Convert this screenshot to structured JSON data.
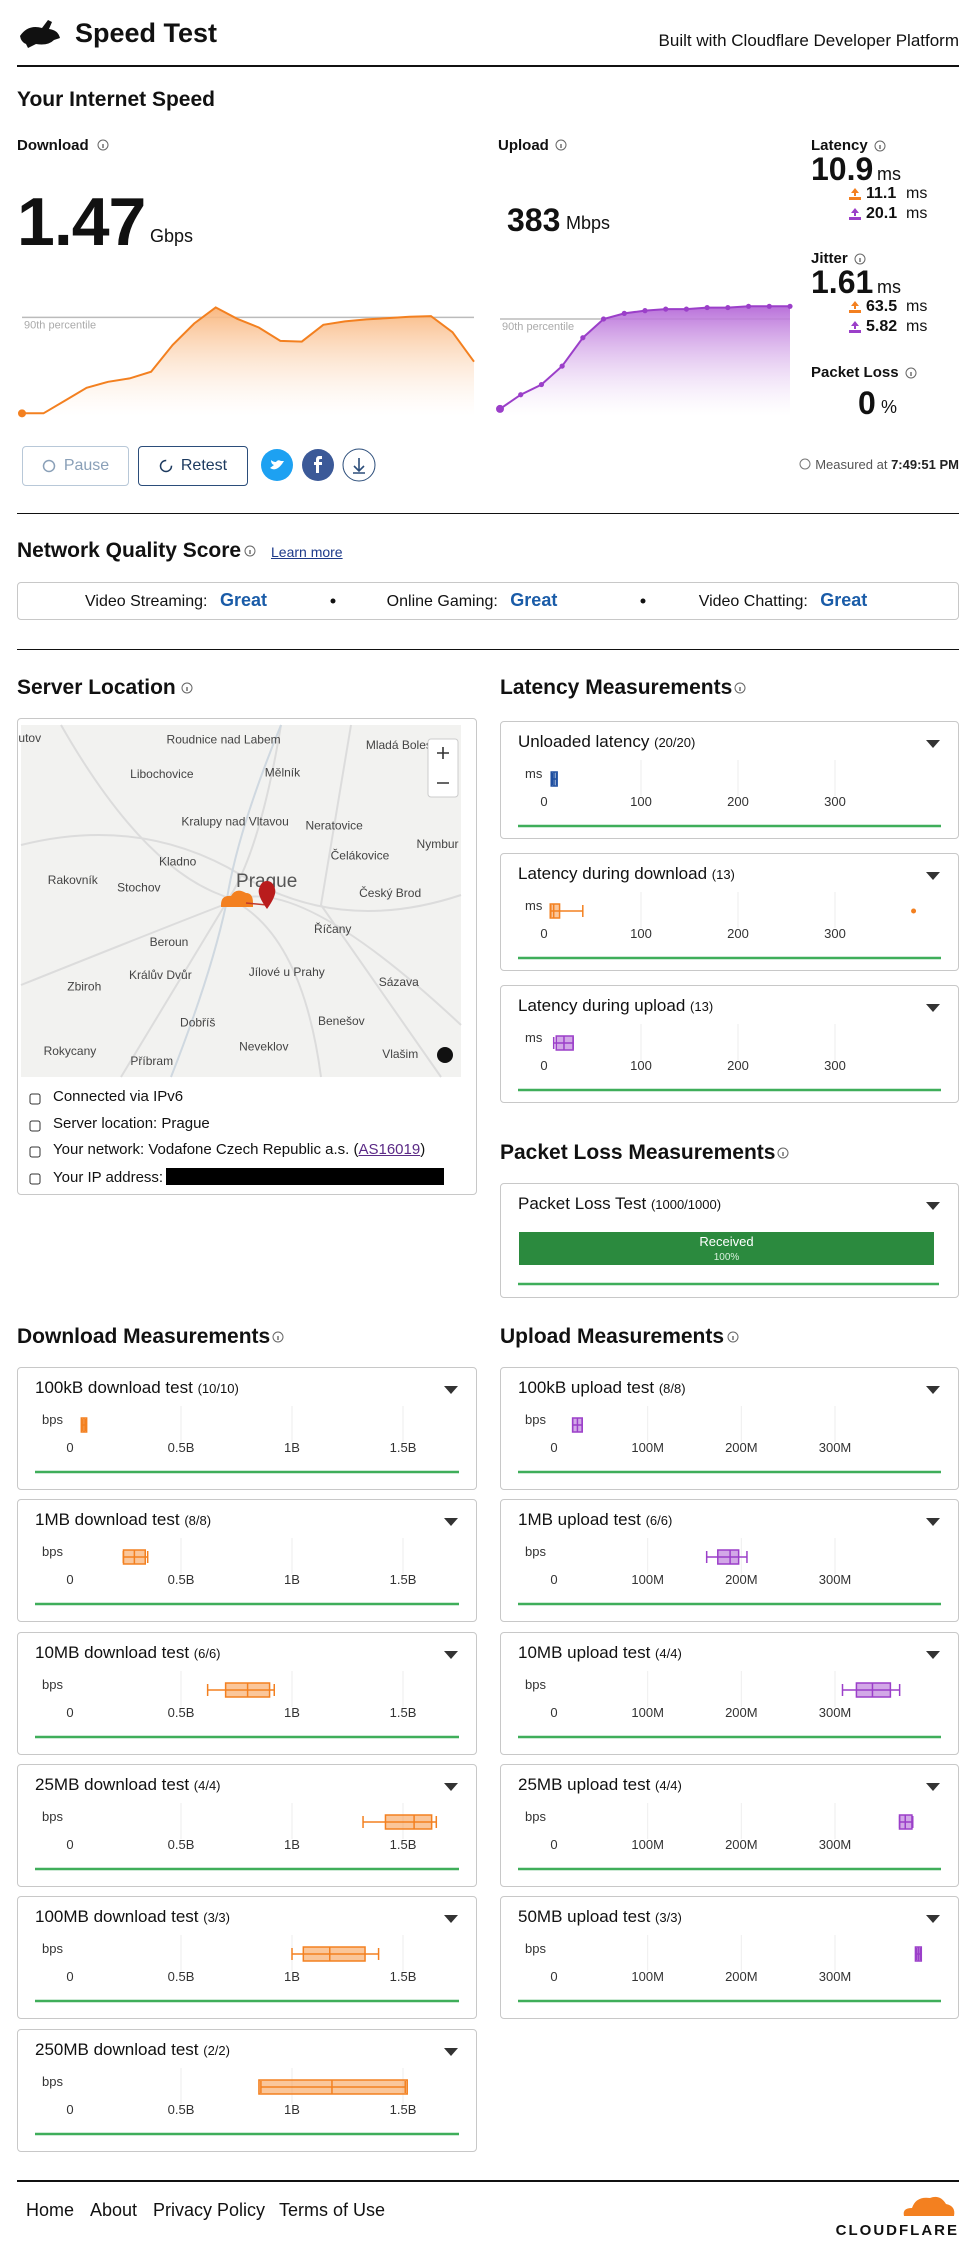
{
  "header": {
    "title": "Speed Test",
    "tagline": "Built with Cloudflare Developer Platform"
  },
  "speed": {
    "heading": "Your Internet Speed",
    "download": {
      "label": "Download",
      "value": 1.47,
      "unit": "Gbps",
      "percentile_label": "90th percentile",
      "ylim": [
        0,
        1.7
      ],
      "samples": [
        0.04,
        0.04,
        0.23,
        0.42,
        0.51,
        0.56,
        0.66,
        1.06,
        1.38,
        1.62,
        1.45,
        1.32,
        1.12,
        1.11,
        1.36,
        1.41,
        1.44,
        1.46,
        1.48,
        1.49,
        1.25,
        0.81
      ]
    },
    "upload": {
      "label": "Upload",
      "value": 383,
      "unit": "Mbps",
      "percentile_label": "90th percentile",
      "ylim": [
        0,
        450
      ],
      "samples": [
        28,
        84,
        124,
        197,
        309,
        383,
        405,
        416,
        422,
        422,
        428,
        428,
        433,
        433,
        433
      ]
    },
    "latency": {
      "label": "Latency",
      "value": 10.9,
      "unit": "ms",
      "down": 11.1,
      "down_unit": "ms",
      "up": 20.1,
      "up_unit": "ms"
    },
    "jitter": {
      "label": "Jitter",
      "value": 1.61,
      "unit": "ms",
      "down": 63.5,
      "down_unit": "ms",
      "up": 5.82,
      "up_unit": "ms"
    },
    "packet_loss": {
      "label": "Packet Loss",
      "value": 0,
      "unit": "%"
    }
  },
  "controls": {
    "pause": "Pause",
    "retest": "Retest",
    "measured_label": "Measured at",
    "measured_time": "7:49:51 PM"
  },
  "network_quality": {
    "heading": "Network Quality Score",
    "link": "Learn more",
    "items": [
      {
        "label": "Video Streaming:",
        "rating": "Great"
      },
      {
        "label": "Online Gaming:",
        "rating": "Great"
      },
      {
        "label": "Video Chatting:",
        "rating": "Great"
      }
    ]
  },
  "server": {
    "heading": "Server Location",
    "map_places": [
      "utov",
      "Roudnice nad Labem",
      "Mladá Bolesl",
      "Libochovice",
      "Mělník",
      "Kralupy nad Vltavou",
      "Neratovice",
      "Nymbur",
      "Čelákovice",
      "Kladno",
      "Rakovník",
      "Stochov",
      "Prague",
      "Český Brod",
      "Říčany",
      "Beroun",
      "Králův Dvůr",
      "Jílové u Prahy",
      "Sázava",
      "Zbiroh",
      "Dobříš",
      "Benešov",
      "Neveklov",
      "Rokycany",
      "Příbram",
      "Vlašim"
    ],
    "rows": [
      {
        "text": "Connected via IPv6"
      },
      {
        "text": "Server location: Prague"
      },
      {
        "text": "Your network: Vodafone Czech Republic a.s. (",
        "link": "AS16019",
        "after": ")"
      },
      {
        "text": "Your IP address:"
      }
    ]
  },
  "latency_measurements": {
    "heading": "Latency Measurements",
    "tests": [
      {
        "title": "Unloaded latency",
        "count": "(20/20)",
        "unit": "ms",
        "color": "#1f4fa0",
        "ticks": [
          0,
          100,
          200,
          300
        ],
        "box": {
          "min": 8.5,
          "q1": 9.5,
          "median": 10.3,
          "q3": 11.5,
          "max": 13
        }
      },
      {
        "title": "Latency during download",
        "count": "(13)",
        "unit": "ms",
        "color": "#f38020",
        "ticks": [
          0,
          100,
          200,
          300
        ],
        "box": {
          "min": 7,
          "q1": 8.5,
          "median": 10,
          "q3": 14,
          "max": 40
        },
        "outliers": [
          381
        ]
      },
      {
        "title": "Latency during upload",
        "count": "(13)",
        "unit": "ms",
        "color": "#9b3fc9",
        "ticks": [
          0,
          100,
          200,
          300
        ],
        "box": {
          "min": 10,
          "q1": 14.7,
          "median": 20.6,
          "q3": 28,
          "max": 30
        }
      }
    ]
  },
  "packet_loss": {
    "heading": "Packet Loss Measurements",
    "title": "Packet Loss Test",
    "count": "(1000/1000)",
    "bar_label": "Received",
    "value": 100,
    "value_label": "100%"
  },
  "download_measurements": {
    "heading": "Download Measurements",
    "tests": [
      {
        "title": "100kB download test",
        "count": "(10/10)",
        "unit": "bps",
        "box": {
          "min": 55000000,
          "q1": 60000000,
          "median": 63000000,
          "q3": 66000000,
          "max": 70000000
        }
      },
      {
        "title": "1MB download test",
        "count": "(8/8)",
        "unit": "bps",
        "box": {
          "min": 240000000,
          "q1": 250000000,
          "median": 290000000,
          "q3": 330000000,
          "max": 350000000
        }
      },
      {
        "title": "10MB download test",
        "count": "(6/6)",
        "unit": "bps",
        "box": {
          "min": 620000000,
          "q1": 710000000,
          "median": 800000000,
          "q3": 890000000,
          "max": 920000000
        }
      },
      {
        "title": "25MB download test",
        "count": "(4/4)",
        "unit": "bps",
        "box": {
          "min": 1320000000,
          "q1": 1430000000,
          "median": 1550000000,
          "q3": 1620000000,
          "max": 1650000000
        }
      },
      {
        "title": "100MB download test",
        "count": "(3/3)",
        "unit": "bps",
        "box": {
          "min": 1000000000,
          "q1": 1060000000,
          "median": 1170000000,
          "q3": 1320000000,
          "max": 1390000000
        }
      },
      {
        "title": "250MB download test",
        "count": "(2/2)",
        "unit": "bps",
        "box": {
          "min": 860000000,
          "q1": 860000000,
          "median": 1180000000,
          "q3": 1510000000,
          "max": 1510000000
        }
      }
    ],
    "ticks": [
      0,
      {
        "value": 500000000,
        "label": "0.5B"
      },
      {
        "value": 1000000000,
        "label": "1B"
      },
      {
        "value": 1500000000,
        "label": "1.5B"
      }
    ],
    "color": "#f38020"
  },
  "upload_measurements": {
    "heading": "Upload Measurements",
    "tests": [
      {
        "title": "100kB upload test",
        "count": "(8/8)",
        "unit": "bps",
        "box": {
          "min": 20000000,
          "q1": 22000000,
          "median": 25000000,
          "q3": 28000000,
          "max": 30000000
        }
      },
      {
        "title": "1MB upload test",
        "count": "(6/6)",
        "unit": "bps",
        "box": {
          "min": 163000000,
          "q1": 177000000,
          "median": 188000000,
          "q3": 195000000,
          "max": 206000000
        }
      },
      {
        "title": "10MB upload test",
        "count": "(4/4)",
        "unit": "bps",
        "box": {
          "min": 308000000,
          "q1": 325000000,
          "median": 340000000,
          "q3": 357000000,
          "max": 369000000
        }
      },
      {
        "title": "25MB upload test",
        "count": "(4/4)",
        "unit": "bps",
        "box": {
          "min": 369000000,
          "q1": 371000000,
          "median": 375000000,
          "q3": 380000000,
          "max": 383000000
        }
      },
      {
        "title": "50MB upload test",
        "count": "(3/3)",
        "unit": "bps",
        "box": {
          "min": 387000000,
          "q1": 388000000,
          "median": 389000000,
          "q3": 390000000,
          "max": 391000000
        }
      }
    ],
    "ticks": [
      0,
      {
        "value": 100000000,
        "label": "100M"
      },
      {
        "value": 200000000,
        "label": "200M"
      },
      {
        "value": 300000000,
        "label": "300M"
      }
    ],
    "color": "#9b3fc9"
  },
  "footer": {
    "links": [
      "Home",
      "About",
      "Privacy Policy",
      "Terms of Use"
    ],
    "logo": "CLOUDFLARE"
  }
}
